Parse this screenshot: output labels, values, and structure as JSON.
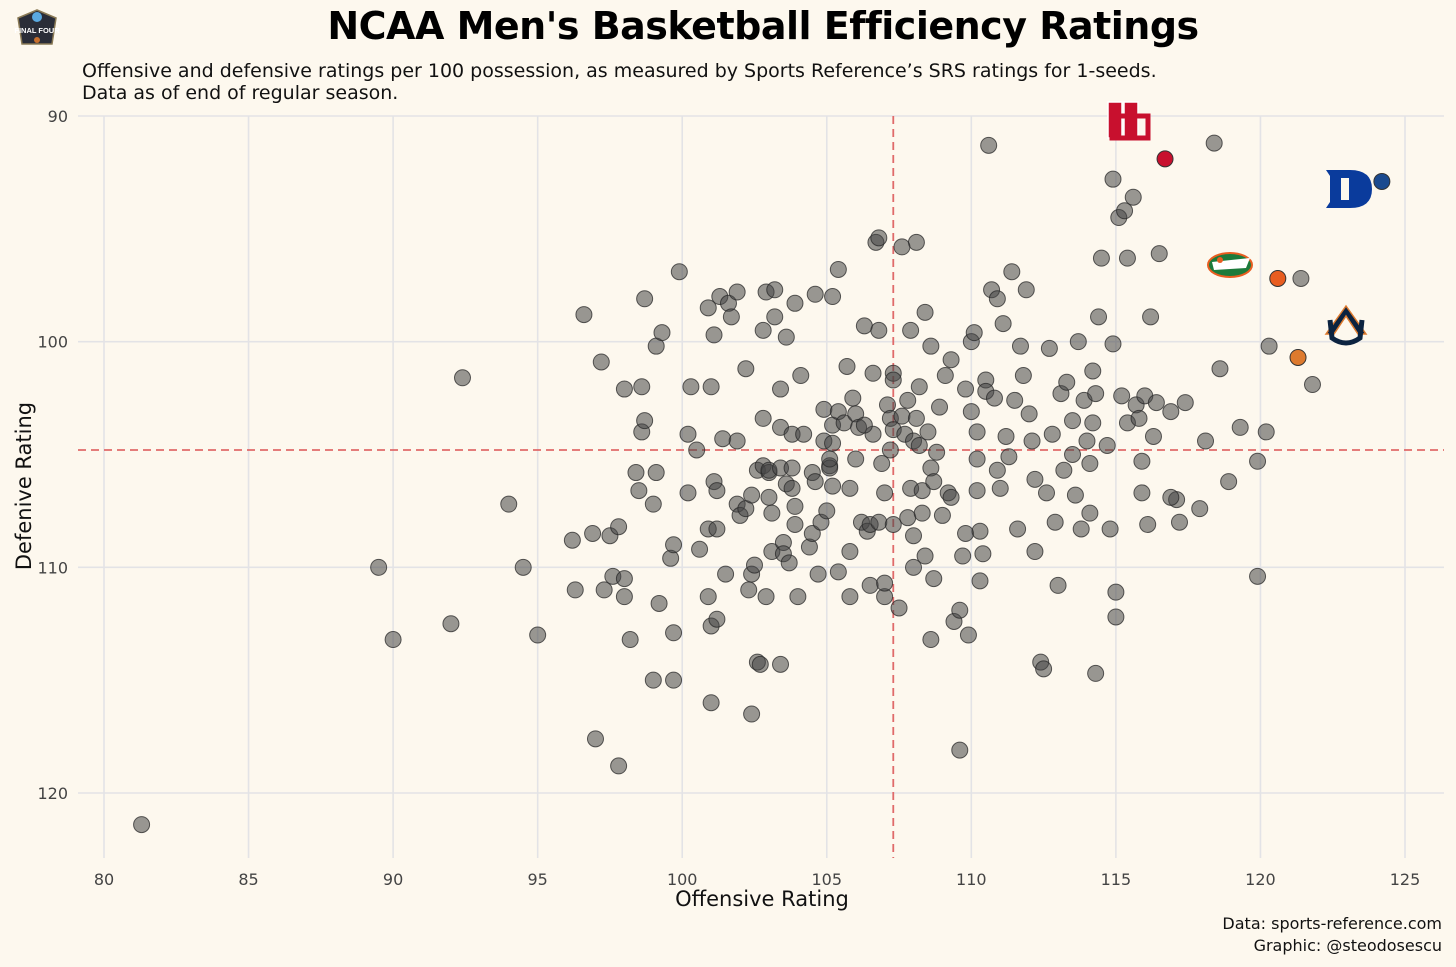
{
  "header": {
    "title": "NCAA Men's Basketball Efficiency Ratings",
    "subtitle_line1": "Offensive  and defensive  ratings  per 100 possession,  as measured by Sports  Reference’s  SRS ratings  for 1-seeds.",
    "subtitle_line2": "Data as of end of regular season.",
    "logo_text": "FINAL FOUR"
  },
  "footer": {
    "source": "Data: sports-reference.com",
    "credit": "Graphic: @steodosescu"
  },
  "chart_data": {
    "type": "scatter",
    "title": "NCAA Men's Basketball Efficiency Ratings",
    "xlabel": "Offensive Rating",
    "ylabel": "Defenive Rating",
    "xlim": [
      79.2,
      126.2
    ],
    "ylim": [
      90,
      123
    ],
    "y_reversed": true,
    "x_ticks": [
      80,
      85,
      90,
      95,
      100,
      105,
      110,
      115,
      120,
      125
    ],
    "y_ticks": [
      90,
      100,
      110,
      120
    ],
    "grid": true,
    "reference_lines": {
      "x": 107.3,
      "y": 104.8,
      "color": "#e06a6a"
    },
    "highlighted": [
      {
        "team": "Houston",
        "x": 116.7,
        "y": 91.9,
        "color": "#c8102e",
        "icon": "houston-logo-icon"
      },
      {
        "team": "Duke",
        "x": 124.2,
        "y": 92.9,
        "color": "#1b4a8f",
        "icon": "duke-logo-icon"
      },
      {
        "team": "Florida",
        "x": 120.6,
        "y": 97.2,
        "color": "#e85d20",
        "icon": "florida-gator-logo-icon"
      },
      {
        "team": "Auburn",
        "x": 121.3,
        "y": 100.7,
        "color": "#dd7a2e",
        "icon": "auburn-logo-icon"
      }
    ],
    "points": [
      [
        81.3,
        121.4
      ],
      [
        89.5,
        110
      ],
      [
        90,
        113.2
      ],
      [
        92,
        112.5
      ],
      [
        92.4,
        101.6
      ],
      [
        94,
        107.2
      ],
      [
        94.5,
        110
      ],
      [
        95,
        113
      ],
      [
        96.2,
        108.8
      ],
      [
        96.3,
        111
      ],
      [
        96.6,
        98.8
      ],
      [
        96.9,
        108.5
      ],
      [
        97,
        117.6
      ],
      [
        97.2,
        100.9
      ],
      [
        97.3,
        111
      ],
      [
        97.5,
        108.6
      ],
      [
        97.6,
        110.4
      ],
      [
        97.8,
        118.8
      ],
      [
        97.8,
        108.2
      ],
      [
        98,
        110.5
      ],
      [
        98,
        111.3
      ],
      [
        98,
        102.1
      ],
      [
        98.2,
        113.2
      ],
      [
        98.4,
        105.8
      ],
      [
        98.5,
        106.6
      ],
      [
        98.6,
        104
      ],
      [
        98.6,
        102
      ],
      [
        98.7,
        103.5
      ],
      [
        98.7,
        98.1
      ],
      [
        99,
        115
      ],
      [
        99,
        107.2
      ],
      [
        99.1,
        100.2
      ],
      [
        99.1,
        105.8
      ],
      [
        99.2,
        111.6
      ],
      [
        99.3,
        99.6
      ],
      [
        99.6,
        109.6
      ],
      [
        99.7,
        115
      ],
      [
        99.7,
        112.9
      ],
      [
        99.7,
        109
      ],
      [
        99.9,
        96.9
      ],
      [
        100.2,
        104.1
      ],
      [
        100.2,
        106.7
      ],
      [
        100.3,
        102
      ],
      [
        100.5,
        104.8
      ],
      [
        100.6,
        109.2
      ],
      [
        100.9,
        108.3
      ],
      [
        100.9,
        98.5
      ],
      [
        100.9,
        111.3
      ],
      [
        101,
        112.6
      ],
      [
        101,
        116
      ],
      [
        101,
        102.0
      ],
      [
        101.1,
        99.7
      ],
      [
        101.1,
        106.2
      ],
      [
        101.2,
        108.3
      ],
      [
        101.2,
        106.6
      ],
      [
        101.2,
        112.3
      ],
      [
        101.3,
        98
      ],
      [
        101.4,
        104.3
      ],
      [
        101.5,
        110.3
      ],
      [
        101.6,
        98.3
      ],
      [
        101.7,
        98.9
      ],
      [
        101.9,
        97.8
      ],
      [
        101.9,
        104.4
      ],
      [
        101.9,
        107.2
      ],
      [
        102,
        107.7
      ],
      [
        102.2,
        107.4
      ],
      [
        102.2,
        101.2
      ],
      [
        102.3,
        111
      ],
      [
        102.4,
        110.3
      ],
      [
        102.4,
        116.5
      ],
      [
        102.4,
        106.8
      ],
      [
        102.5,
        109.9
      ],
      [
        102.6,
        105.7
      ],
      [
        102.6,
        114.2
      ],
      [
        102.7,
        114.3
      ],
      [
        102.8,
        103.4
      ],
      [
        102.8,
        105.5
      ],
      [
        102.8,
        99.5
      ],
      [
        102.9,
        97.8
      ],
      [
        102.9,
        111.3
      ],
      [
        103,
        105.8
      ],
      [
        103,
        106.9
      ],
      [
        103,
        105.7
      ],
      [
        103.1,
        109.3
      ],
      [
        103.1,
        107.6
      ],
      [
        103.2,
        98.9
      ],
      [
        103.2,
        97.7
      ],
      [
        103.4,
        102.1
      ],
      [
        103.4,
        103.8
      ],
      [
        103.4,
        105.6
      ],
      [
        103.4,
        114.3
      ],
      [
        103.5,
        108.9
      ],
      [
        103.5,
        109.4
      ],
      [
        103.6,
        106.3
      ],
      [
        103.6,
        99.8
      ],
      [
        103.7,
        109.8
      ],
      [
        103.8,
        104.1
      ],
      [
        103.8,
        105.6
      ],
      [
        103.8,
        106.5
      ],
      [
        103.9,
        107.3
      ],
      [
        103.9,
        98.3
      ],
      [
        103.9,
        108.1
      ],
      [
        104,
        111.3
      ],
      [
        104.1,
        101.5
      ],
      [
        104.2,
        104.1
      ],
      [
        104.4,
        109.1
      ],
      [
        104.5,
        105.8
      ],
      [
        104.5,
        108.5
      ],
      [
        104.6,
        97.9
      ],
      [
        104.6,
        106.2
      ],
      [
        104.7,
        110.3
      ],
      [
        104.8,
        108
      ],
      [
        104.9,
        104.4
      ],
      [
        104.9,
        103
      ],
      [
        105,
        107.5
      ],
      [
        105.1,
        105.5
      ],
      [
        105.1,
        105.6
      ],
      [
        105.1,
        105.2
      ],
      [
        105.2,
        103.7
      ],
      [
        105.2,
        98
      ],
      [
        105.2,
        104.5
      ],
      [
        105.2,
        106.4
      ],
      [
        105.4,
        103.1
      ],
      [
        105.6,
        103.6
      ],
      [
        105.7,
        101.1
      ],
      [
        105.8,
        106.5
      ],
      [
        105.8,
        111.3
      ],
      [
        105.8,
        109.3
      ],
      [
        105.9,
        102.5
      ],
      [
        106,
        103.2
      ],
      [
        106,
        105.2
      ],
      [
        106.1,
        103.8
      ],
      [
        106.2,
        108
      ],
      [
        106.3,
        99.3
      ],
      [
        106.4,
        108.4
      ],
      [
        106.5,
        110.8
      ],
      [
        106.5,
        108.1
      ],
      [
        106.6,
        104.1
      ],
      [
        106.6,
        101.4
      ],
      [
        106.7,
        95.6
      ],
      [
        106.8,
        95.4
      ],
      [
        106.8,
        99.5
      ],
      [
        106.8,
        108
      ],
      [
        106.9,
        105.4
      ],
      [
        107.0,
        111.3
      ],
      [
        107.0,
        106.7
      ],
      [
        107.0,
        110.7
      ],
      [
        107.1,
        102.8
      ],
      [
        107.2,
        103.4
      ],
      [
        107.2,
        104.8
      ],
      [
        107.3,
        101.4
      ],
      [
        107.3,
        103.9
      ],
      [
        107.3,
        108.1
      ],
      [
        107.3,
        101.7
      ],
      [
        107.5,
        111.8
      ],
      [
        107.6,
        103.3
      ],
      [
        107.7,
        104.1
      ],
      [
        107.8,
        107.8
      ],
      [
        107.8,
        102.6
      ],
      [
        107.9,
        106.5
      ],
      [
        107.9,
        99.5
      ],
      [
        108.0,
        110
      ],
      [
        108.0,
        108.6
      ],
      [
        108.0,
        104.4
      ],
      [
        108.1,
        103.4
      ],
      [
        108.2,
        104.6
      ],
      [
        108.2,
        102.0
      ],
      [
        108.3,
        106.6
      ],
      [
        108.3,
        107.6
      ],
      [
        108.4,
        98.7
      ],
      [
        108.4,
        109.5
      ],
      [
        108.5,
        104.0
      ],
      [
        108.6,
        100.2
      ],
      [
        108.6,
        105.6
      ],
      [
        108.6,
        113.2
      ],
      [
        108.7,
        106.2
      ],
      [
        108.7,
        110.5
      ],
      [
        108.8,
        104.9
      ],
      [
        108.9,
        102.9
      ],
      [
        109.0,
        107.7
      ],
      [
        109.1,
        101.5
      ],
      [
        109.2,
        106.7
      ],
      [
        109.3,
        100.8
      ],
      [
        109.3,
        106.9
      ],
      [
        109.4,
        112.4
      ],
      [
        109.6,
        111.9
      ],
      [
        109.6,
        118.1
      ],
      [
        109.7,
        109.5
      ],
      [
        109.8,
        102.1
      ],
      [
        109.8,
        108.5
      ],
      [
        109.9,
        113
      ],
      [
        110.0,
        100
      ],
      [
        110.0,
        103.1
      ],
      [
        110.1,
        99.6
      ],
      [
        110.2,
        104
      ],
      [
        110.2,
        105.2
      ],
      [
        110.2,
        106.6
      ],
      [
        110.3,
        108.4
      ],
      [
        110.3,
        110.6
      ],
      [
        110.4,
        109.4
      ],
      [
        110.5,
        101.7
      ],
      [
        110.5,
        102.2
      ],
      [
        110.6,
        91.3
      ],
      [
        110.7,
        97.7
      ],
      [
        110.8,
        102.5
      ],
      [
        110.9,
        105.7
      ],
      [
        110.9,
        98.1
      ],
      [
        111.0,
        106.5
      ],
      [
        111.1,
        99.2
      ],
      [
        111.2,
        104.2
      ],
      [
        111.3,
        105.1
      ],
      [
        111.4,
        96.9
      ],
      [
        111.5,
        102.6
      ],
      [
        111.6,
        108.3
      ],
      [
        111.7,
        100.2
      ],
      [
        111.8,
        101.5
      ],
      [
        111.9,
        97.7
      ],
      [
        112.0,
        103.2
      ],
      [
        112.1,
        104.4
      ],
      [
        112.2,
        106.1
      ],
      [
        112.2,
        109.3
      ],
      [
        112.4,
        114.2
      ],
      [
        112.5,
        114.5
      ],
      [
        112.6,
        106.7
      ],
      [
        112.7,
        100.3
      ],
      [
        112.8,
        104.1
      ],
      [
        112.9,
        108
      ],
      [
        113.0,
        110.8
      ],
      [
        113.1,
        102.3
      ],
      [
        113.2,
        105.7
      ],
      [
        113.3,
        101.8
      ],
      [
        113.5,
        105.0
      ],
      [
        113.5,
        103.5
      ],
      [
        113.6,
        106.8
      ],
      [
        113.7,
        100
      ],
      [
        113.8,
        108.3
      ],
      [
        113.9,
        102.6
      ],
      [
        114.0,
        104.4
      ],
      [
        114.1,
        105.4
      ],
      [
        114.1,
        107.6
      ],
      [
        114.2,
        103.6
      ],
      [
        114.2,
        101.3
      ],
      [
        114.3,
        102.3
      ],
      [
        114.3,
        114.7
      ],
      [
        114.4,
        98.9
      ],
      [
        114.5,
        96.3
      ],
      [
        114.7,
        104.6
      ],
      [
        114.8,
        108.3
      ],
      [
        114.9,
        100.1
      ],
      [
        114.9,
        92.8
      ],
      [
        115.0,
        112.2
      ],
      [
        115.0,
        111.1
      ],
      [
        115.1,
        94.5
      ],
      [
        115.2,
        102.4
      ],
      [
        115.3,
        94.2
      ],
      [
        115.4,
        103.6
      ],
      [
        115.4,
        96.3
      ],
      [
        115.6,
        93.6
      ],
      [
        115.7,
        102.8
      ],
      [
        115.8,
        103.4
      ],
      [
        115.9,
        105.3
      ],
      [
        115.9,
        106.7
      ],
      [
        116.0,
        102.4
      ],
      [
        116.1,
        108.1
      ],
      [
        116.2,
        98.9
      ],
      [
        116.3,
        104.2
      ],
      [
        116.4,
        102.7
      ],
      [
        116.5,
        96.1
      ],
      [
        116.9,
        103.1
      ],
      [
        117.1,
        107
      ],
      [
        117.2,
        108
      ],
      [
        117.4,
        102.7
      ],
      [
        117.9,
        107.4
      ],
      [
        118.1,
        104.4
      ],
      [
        118.4,
        91.2
      ],
      [
        118.6,
        101.2
      ],
      [
        118.9,
        106.2
      ],
      [
        119.3,
        103.8
      ],
      [
        119.9,
        105.3
      ],
      [
        119.9,
        110.4
      ],
      [
        120.2,
        104
      ],
      [
        120.3,
        100.2
      ],
      [
        121.4,
        97.2
      ],
      [
        121.8,
        101.9
      ],
      [
        116.9,
        106.9
      ],
      [
        108.1,
        95.6
      ],
      [
        107.6,
        95.8
      ],
      [
        105.4,
        96.8
      ],
      [
        106.3,
        103.7
      ],
      [
        105.4,
        110.2
      ]
    ]
  }
}
